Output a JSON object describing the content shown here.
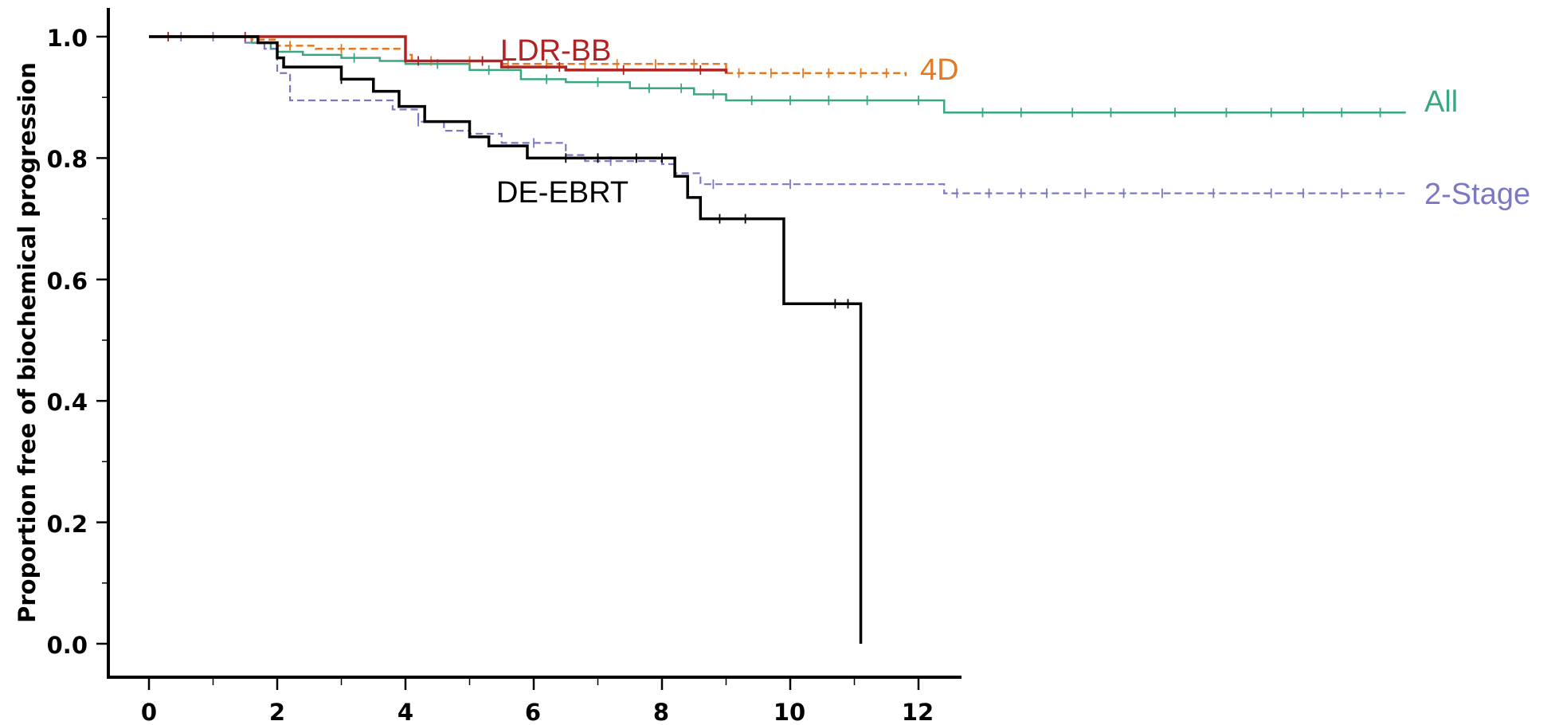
{
  "chart_data": {
    "type": "line",
    "subtype": "kaplan-meier",
    "ylabel": "Proportion free of biochemical progression",
    "xlabel": "",
    "xlim": [
      0,
      12.8
    ],
    "ylim": [
      0,
      1.0
    ],
    "x_ticks": [
      0,
      2,
      4,
      6,
      8,
      10,
      12
    ],
    "y_ticks": [
      0.0,
      0.2,
      0.4,
      0.6,
      0.8,
      1.0
    ],
    "x_tick_labels": [
      "0",
      "2",
      "4",
      "6",
      "8",
      "10",
      "12"
    ],
    "y_tick_labels": [
      "0.0",
      "0.2",
      "0.4",
      "0.6",
      "0.8",
      "1.0"
    ],
    "grid": false,
    "legend": "inline labels at line ends",
    "series": [
      {
        "name": "All",
        "color": "#3aa77e",
        "dash": "solid",
        "steps": [
          [
            0,
            1.0
          ],
          [
            1.6,
            0.99
          ],
          [
            1.9,
            0.98
          ],
          [
            2.0,
            0.975
          ],
          [
            2.4,
            0.97
          ],
          [
            3.0,
            0.965
          ],
          [
            3.6,
            0.96
          ],
          [
            4.0,
            0.955
          ],
          [
            5.0,
            0.945
          ],
          [
            5.8,
            0.93
          ],
          [
            6.5,
            0.925
          ],
          [
            7.5,
            0.915
          ],
          [
            8.5,
            0.905
          ],
          [
            9.0,
            0.895
          ],
          [
            12.4,
            0.875
          ],
          [
            19.6,
            0.875
          ]
        ],
        "censor_x": [
          3.2,
          4.5,
          5.3,
          6.2,
          7.0,
          7.8,
          8.3,
          8.8,
          9.4,
          10.0,
          10.6,
          11.2,
          12.0,
          13.0,
          13.6,
          14.4,
          15.0,
          16.0,
          16.8,
          17.5,
          18.0,
          18.6,
          19.2
        ]
      },
      {
        "name": "2-Stage",
        "color": "#7b78c4",
        "dash": "dashed",
        "steps": [
          [
            0,
            1.0
          ],
          [
            1.5,
            0.99
          ],
          [
            1.8,
            0.98
          ],
          [
            2.0,
            0.94
          ],
          [
            2.2,
            0.895
          ],
          [
            3.8,
            0.88
          ],
          [
            4.2,
            0.86
          ],
          [
            4.6,
            0.845
          ],
          [
            5.0,
            0.84
          ],
          [
            5.5,
            0.825
          ],
          [
            6.5,
            0.805
          ],
          [
            6.8,
            0.795
          ],
          [
            8.0,
            0.79
          ],
          [
            8.2,
            0.775
          ],
          [
            8.6,
            0.757
          ],
          [
            12.4,
            0.742
          ],
          [
            19.6,
            0.742
          ]
        ],
        "censor_x": [
          0.5,
          1.0,
          4.2,
          6.0,
          7.2,
          8.8,
          10.0,
          12.6,
          13.1,
          13.6,
          14.0,
          14.6,
          15.2,
          15.8,
          16.6,
          17.5,
          18.0,
          18.6,
          19.2
        ]
      },
      {
        "name": "LDR-BB",
        "color": "#b22222",
        "dash": "solid",
        "steps": [
          [
            0,
            1.0
          ],
          [
            1.8,
            1.0
          ],
          [
            4.0,
            0.96
          ],
          [
            5.5,
            0.95
          ],
          [
            6.5,
            0.945
          ],
          [
            9.0,
            0.94
          ]
        ],
        "censor_x": [
          0.3,
          1.5,
          4.2,
          5.2,
          6.4,
          7.4,
          8.6
        ]
      },
      {
        "name": "4D",
        "color": "#e07a26",
        "dash": "dashed",
        "steps": [
          [
            0,
            1.0
          ],
          [
            1.6,
            0.995
          ],
          [
            2.0,
            0.985
          ],
          [
            2.6,
            0.98
          ],
          [
            4.0,
            0.97
          ],
          [
            4.1,
            0.96
          ],
          [
            5.5,
            0.955
          ],
          [
            9.0,
            0.94
          ],
          [
            11.8,
            0.935
          ]
        ],
        "censor_x": [
          2.2,
          3.0,
          4.4,
          5.0,
          5.6,
          6.2,
          6.8,
          7.3,
          7.9,
          8.5,
          9.2,
          9.7,
          10.2,
          10.6,
          11.1,
          11.5
        ]
      },
      {
        "name": "DE-EBRT",
        "color": "#000000",
        "dash": "solid",
        "steps": [
          [
            0,
            1.0
          ],
          [
            1.7,
            0.99
          ],
          [
            2.0,
            0.965
          ],
          [
            2.1,
            0.95
          ],
          [
            3.0,
            0.93
          ],
          [
            3.5,
            0.91
          ],
          [
            3.9,
            0.885
          ],
          [
            4.3,
            0.86
          ],
          [
            5.0,
            0.835
          ],
          [
            5.3,
            0.82
          ],
          [
            5.9,
            0.8
          ],
          [
            8.2,
            0.77
          ],
          [
            8.4,
            0.735
          ],
          [
            8.6,
            0.7
          ],
          [
            9.9,
            0.56
          ],
          [
            11.1,
            0.0
          ]
        ],
        "censor_x": [
          3.0,
          6.5,
          7.0,
          7.6,
          8.0,
          8.9,
          9.3,
          10.7,
          10.9
        ]
      }
    ]
  }
}
